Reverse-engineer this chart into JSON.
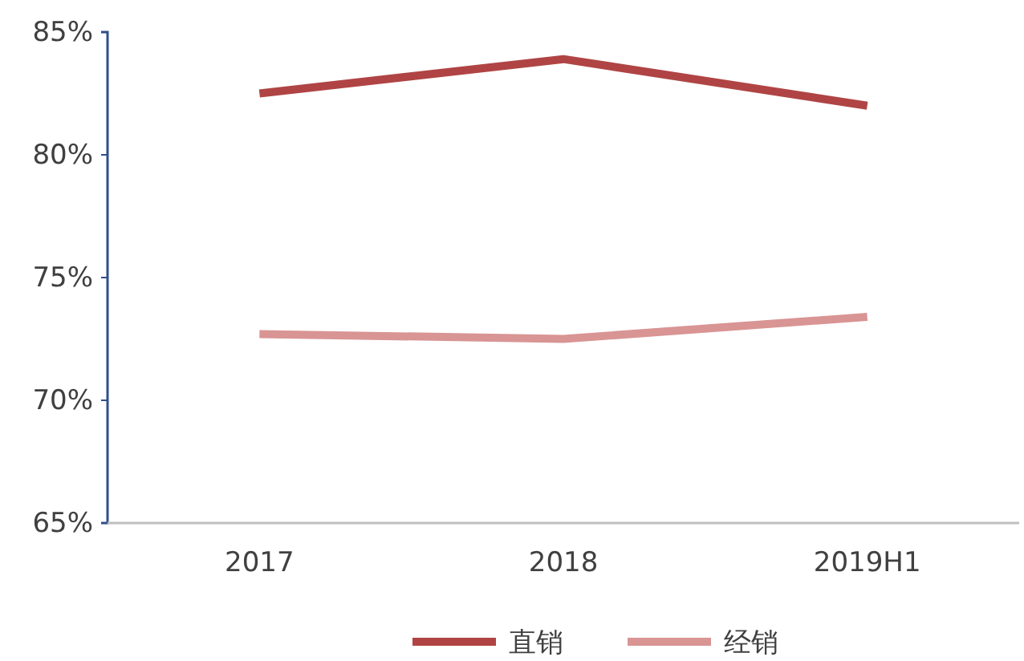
{
  "chart_data": {
    "type": "line",
    "categories": [
      "2017",
      "2018",
      "2019H1"
    ],
    "series": [
      {
        "name": "直销",
        "color": "#b04444",
        "values": [
          82.5,
          83.9,
          82.0
        ]
      },
      {
        "name": "经销",
        "color": "#d99494",
        "values": [
          72.7,
          72.5,
          73.4
        ]
      }
    ],
    "ylim": [
      65,
      85
    ],
    "yticks": [
      {
        "value": 65,
        "label": "65%"
      },
      {
        "value": 70,
        "label": "70%"
      },
      {
        "value": 75,
        "label": "75%"
      },
      {
        "value": 80,
        "label": "80%"
      },
      {
        "value": 85,
        "label": "85%"
      }
    ],
    "grid": false,
    "legend": "bottom",
    "marker": "none",
    "line_style": "solid"
  }
}
